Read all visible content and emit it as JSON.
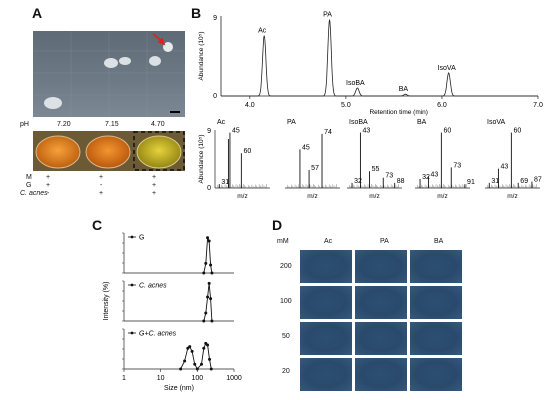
{
  "panels": {
    "A": {
      "letter": "A",
      "ph_label": "pH",
      "ph_values": [
        "7.20",
        "7.15",
        "4.70"
      ],
      "rows": [
        {
          "label": "M",
          "signs": [
            "+",
            "+",
            "+"
          ]
        },
        {
          "label": "G",
          "signs": [
            "+",
            "-",
            "+"
          ]
        },
        {
          "label": "C. acnes",
          "signs": [
            "-",
            "+",
            "+"
          ]
        }
      ],
      "well_colors": [
        "#e8861b",
        "#e47a14",
        "#c9b51d"
      ]
    },
    "B": {
      "letter": "B",
      "chrom": {
        "ylabel": "Abundance (10⁵)",
        "xlabel": "Retention time (min)",
        "ytick_top": "9",
        "ytick_zero": "0",
        "xticks": [
          "4.0",
          "5.0",
          "6.0",
          "7.0"
        ],
        "peaks": [
          {
            "name": "Ac",
            "rt": 4.15,
            "height": 6.8
          },
          {
            "name": "PA",
            "rt": 4.83,
            "height": 8.6
          },
          {
            "name": "IsoBA",
            "rt": 5.12,
            "height": 0.9
          },
          {
            "name": "BA",
            "rt": 5.62,
            "height": 0.2
          },
          {
            "name": "IsoVA",
            "rt": 6.07,
            "height": 2.6
          }
        ]
      },
      "spectra_ylabel": "Abundance (10⁵)",
      "spectra_ytick_top": "9",
      "spectra_ytick_zero": "0",
      "spectra_xlabel": "m/z",
      "spectra": [
        {
          "name": "Ac",
          "peaks": [
            [
              31,
              0.6
            ],
            [
              43,
              7.6
            ],
            [
              45,
              8.6
            ],
            [
              60,
              5.4
            ]
          ],
          "labels": [
            "31",
            "45",
            "60"
          ]
        },
        {
          "name": "PA",
          "peaks": [
            [
              45,
              6.0
            ],
            [
              57,
              2.8
            ],
            [
              74,
              8.4
            ]
          ],
          "labels": [
            "45",
            "57",
            "74"
          ]
        },
        {
          "name": "IsoBA",
          "peaks": [
            [
              32,
              0.8
            ],
            [
              43,
              8.6
            ],
            [
              55,
              2.6
            ],
            [
              73,
              1.6
            ],
            [
              88,
              0.8
            ]
          ],
          "labels": [
            "32",
            "43",
            "55",
            "73",
            "88"
          ]
        },
        {
          "name": "BA",
          "peaks": [
            [
              32,
              1.4
            ],
            [
              43,
              1.8
            ],
            [
              60,
              8.6
            ],
            [
              73,
              3.2
            ],
            [
              91,
              0.6
            ]
          ],
          "labels": [
            "32",
            "43",
            "60",
            "73",
            "91"
          ]
        },
        {
          "name": "IsoVA",
          "peaks": [
            [
              31,
              0.8
            ],
            [
              43,
              3.0
            ],
            [
              60,
              8.6
            ],
            [
              69,
              0.8
            ],
            [
              87,
              1.0
            ]
          ],
          "labels": [
            "31",
            "43",
            "60",
            "69",
            "87"
          ]
        }
      ]
    },
    "C": {
      "letter": "C",
      "ylabel": "Intensity (%)",
      "xlabel": "Size (nm)",
      "xticks": [
        "1",
        "10",
        "100",
        "1000"
      ],
      "series": [
        {
          "name": "G",
          "points": [
            [
              150,
              0
            ],
            [
              170,
              12
            ],
            [
              190,
              44
            ],
            [
              210,
              40
            ],
            [
              230,
              10
            ],
            [
              250,
              0
            ]
          ]
        },
        {
          "name": "C. acnes",
          "points": [
            [
              150,
              0
            ],
            [
              170,
              10
            ],
            [
              190,
              30
            ],
            [
              210,
              47
            ],
            [
              230,
              28
            ],
            [
              250,
              0
            ]
          ]
        },
        {
          "name": "G+C. acnes",
          "points": [
            [
              35,
              0
            ],
            [
              45,
              10
            ],
            [
              55,
              26
            ],
            [
              62,
              28
            ],
            [
              72,
              22
            ],
            [
              85,
              6
            ],
            [
              100,
              0
            ],
            [
              130,
              6
            ],
            [
              150,
              26
            ],
            [
              170,
              32
            ],
            [
              190,
              30
            ],
            [
              215,
              12
            ],
            [
              240,
              0
            ]
          ]
        }
      ]
    },
    "D": {
      "letter": "D",
      "unit": "mM",
      "columns": [
        "Ac",
        "PA",
        "BA"
      ],
      "rows": [
        "200",
        "100",
        "50",
        "20"
      ]
    }
  }
}
